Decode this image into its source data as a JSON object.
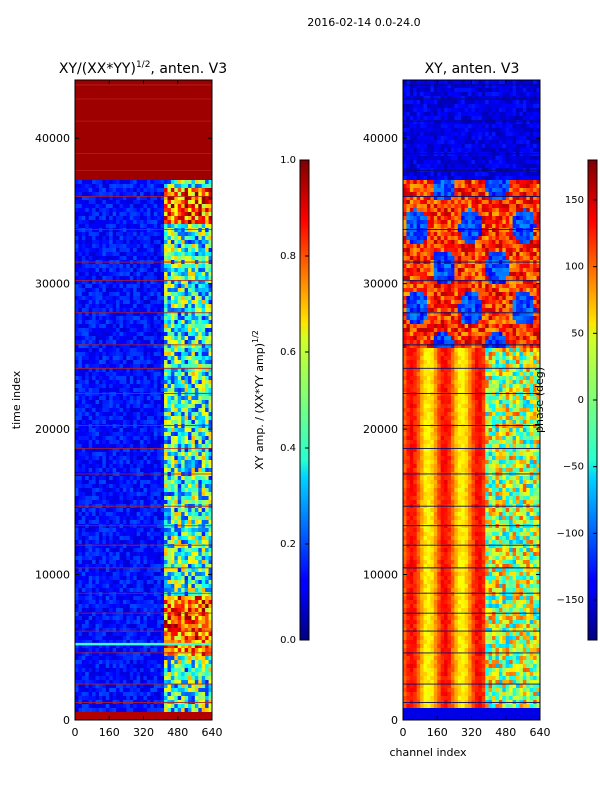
{
  "figure": {
    "suptitle": "2016-02-14 0.0-24.0"
  },
  "chart_data": [
    {
      "type": "heatmap",
      "title_main": "XY/(XX*YY)",
      "title_exp": "1/2",
      "title_tail": ", anten. V3",
      "xlabel": "",
      "ylabel": "time index",
      "xlim": [
        0,
        640
      ],
      "ylim": [
        0,
        44000
      ],
      "xticks": [
        0,
        160,
        320,
        480,
        640
      ],
      "yticks": [
        0,
        10000,
        20000,
        30000,
        40000
      ],
      "colormap": "jet",
      "colorbar": {
        "label_main": "XY amp. / (XX*YY amp)",
        "label_exp": "1/2",
        "range": [
          0.0,
          1.0
        ],
        "ticks": [
          "0.0",
          "0.2",
          "0.4",
          "0.6",
          "0.8",
          "1.0"
        ]
      }
    },
    {
      "type": "heatmap",
      "title": "XY, anten. V3",
      "xlabel": "channel index",
      "ylabel": "",
      "xlim": [
        0,
        640
      ],
      "ylim": [
        0,
        44000
      ],
      "xticks": [
        0,
        160,
        320,
        480,
        640
      ],
      "yticks": [
        0,
        10000,
        20000,
        30000,
        40000
      ],
      "colormap": "jet",
      "colorbar": {
        "label": "phase (deg)",
        "range": [
          -180,
          180
        ],
        "ticks": [
          "150",
          "100",
          "50",
          "0",
          "−50",
          "−100",
          "−150"
        ]
      }
    }
  ]
}
